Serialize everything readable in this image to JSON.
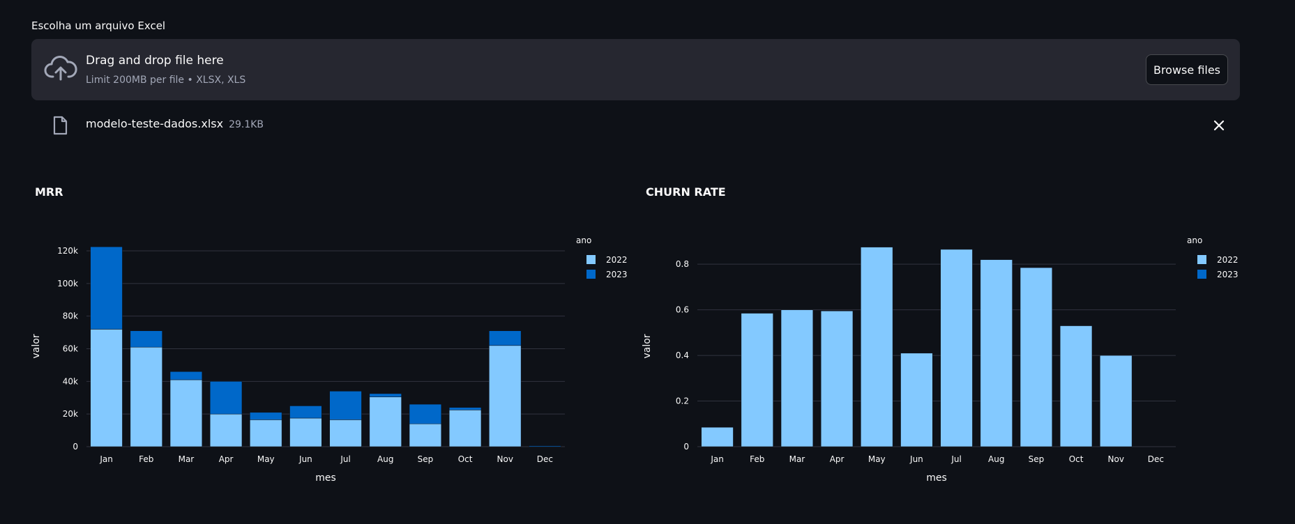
{
  "uploader": {
    "label": "Escolha um arquivo Excel",
    "dropzone_title": "Drag and drop file here",
    "dropzone_subtitle": "Limit 200MB per file • XLSX, XLS",
    "browse_label": "Browse files",
    "file_name": "modelo-teste-dados.xlsx",
    "file_size": "29.1KB"
  },
  "colors": {
    "series_2022": "#83c9ff",
    "series_2023": "#0068c9",
    "background": "#0e1117",
    "panel": "#262730",
    "grid": "#31333f"
  },
  "chart_data": [
    {
      "type": "bar",
      "stacked": true,
      "title": "MRR",
      "xlabel": "mes",
      "ylabel": "valor",
      "legend_title": "ano",
      "legend_position": "top-right",
      "categories": [
        "Jan",
        "Feb",
        "Mar",
        "Apr",
        "May",
        "Jun",
        "Jul",
        "Aug",
        "Sep",
        "Oct",
        "Nov",
        "Dec"
      ],
      "ylim": [
        0,
        123000
      ],
      "yticks": [
        0,
        20000,
        40000,
        60000,
        80000,
        100000,
        120000
      ],
      "ytick_labels": [
        "0",
        "20k",
        "40k",
        "60k",
        "80k",
        "100k",
        "120k"
      ],
      "series": [
        {
          "name": "2022",
          "values": [
            72000,
            61000,
            41000,
            20000,
            16500,
            17500,
            16500,
            30500,
            14000,
            22500,
            62000,
            0
          ]
        },
        {
          "name": "2023",
          "values": [
            50500,
            10000,
            5000,
            20000,
            4500,
            7500,
            17500,
            2000,
            12000,
            1500,
            9000,
            500
          ]
        }
      ]
    },
    {
      "type": "bar",
      "stacked": true,
      "title": "CHURN RATE",
      "xlabel": "mes",
      "ylabel": "valor",
      "legend_title": "ano",
      "legend_position": "top-right",
      "categories": [
        "Jan",
        "Feb",
        "Mar",
        "Apr",
        "May",
        "Jun",
        "Jul",
        "Aug",
        "Sep",
        "Oct",
        "Nov",
        "Dec"
      ],
      "ylim": [
        0,
        0.88
      ],
      "yticks": [
        0,
        0.2,
        0.4,
        0.6,
        0.8
      ],
      "ytick_labels": [
        "0",
        "0.2",
        "0.4",
        "0.6",
        "0.8"
      ],
      "series": [
        {
          "name": "2022",
          "values": [
            0.085,
            0.585,
            0.6,
            0.595,
            0.875,
            0.41,
            0.865,
            0.82,
            0.785,
            0.53,
            0.4,
            0
          ]
        },
        {
          "name": "2023",
          "values": [
            0,
            0,
            0,
            0,
            0,
            0,
            0,
            0,
            0,
            0,
            0,
            0
          ]
        }
      ]
    }
  ]
}
